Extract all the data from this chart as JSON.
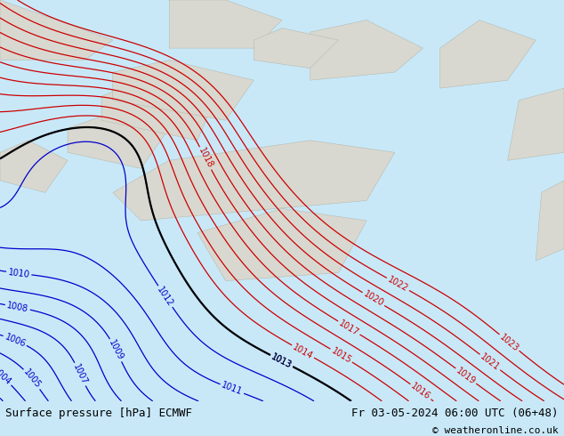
{
  "title_left": "Surface pressure [hPa] ECMWF",
  "title_right": "Fr 03-05-2024 06:00 UTC (06+48)",
  "copyright": "© weatheronline.co.uk",
  "bg_color_land": "#a8d878",
  "bg_color_sea": "#e8e8e8",
  "contour_color_low": "#0000cc",
  "contour_color_high": "#cc0000",
  "contour_color_front": "#000000",
  "label_fontsize": 7,
  "title_fontsize": 9,
  "footer_bg": "#e0e0e0",
  "pressure_min": 1003,
  "pressure_max": 1023,
  "pressure_step": 1
}
